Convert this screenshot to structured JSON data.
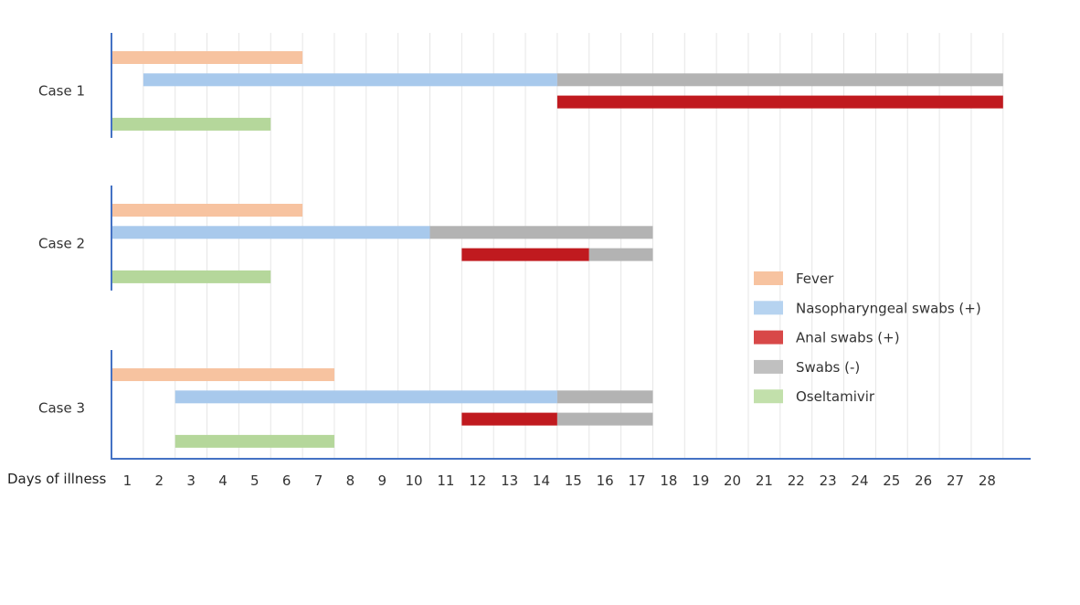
{
  "chart_data": {
    "type": "bar",
    "subtype": "horizontal-timeline",
    "xlabel": "Days of illness",
    "x_ticks": [
      1,
      2,
      3,
      4,
      5,
      6,
      7,
      8,
      9,
      10,
      11,
      12,
      13,
      14,
      15,
      16,
      17,
      18,
      19,
      20,
      21,
      22,
      23,
      24,
      25,
      26,
      27,
      28
    ],
    "xlim": [
      0.5,
      28.5
    ],
    "grid": "vertical",
    "legend_position": "right",
    "colors": {
      "fever": "#f7c3a0",
      "naso": "#a8c9ec",
      "anal": "#c01a1f",
      "negative": "#b3b3b3",
      "oseltamivir": "#b5d79b"
    },
    "legend": [
      {
        "key": "fever",
        "label": "Fever"
      },
      {
        "key": "naso",
        "label": "Nasopharyngeal swabs (+)"
      },
      {
        "key": "anal",
        "label": "Anal swabs (+)"
      },
      {
        "key": "negative",
        "label": "Swabs (-)"
      },
      {
        "key": "oseltamivir",
        "label": "Oseltamivir"
      }
    ],
    "cases": [
      {
        "label": "Case 1",
        "rows": [
          [
            {
              "series": "fever",
              "start": 0.5,
              "end": 6.5
            }
          ],
          [
            {
              "series": "naso",
              "start": 1.5,
              "end": 14.5
            },
            {
              "series": "negative",
              "start": 14.5,
              "end": 28.5
            }
          ],
          [
            {
              "series": "anal",
              "start": 14.5,
              "end": 28.5
            }
          ],
          [
            {
              "series": "oseltamivir",
              "start": 0.5,
              "end": 5.5
            }
          ]
        ]
      },
      {
        "label": "Case 2",
        "rows": [
          [
            {
              "series": "fever",
              "start": 0.5,
              "end": 6.5
            }
          ],
          [
            {
              "series": "naso",
              "start": 0.5,
              "end": 10.5
            },
            {
              "series": "negative",
              "start": 10.5,
              "end": 17.5
            }
          ],
          [
            {
              "series": "anal",
              "start": 11.5,
              "end": 15.5
            },
            {
              "series": "negative",
              "start": 15.5,
              "end": 17.5
            }
          ],
          [
            {
              "series": "oseltamivir",
              "start": 0.5,
              "end": 5.5
            }
          ]
        ]
      },
      {
        "label": "Case 3",
        "rows": [
          [
            {
              "series": "fever",
              "start": 0.5,
              "end": 7.5
            }
          ],
          [
            {
              "series": "naso",
              "start": 2.5,
              "end": 14.5
            },
            {
              "series": "negative",
              "start": 14.5,
              "end": 17.5
            }
          ],
          [
            {
              "series": "anal",
              "start": 11.5,
              "end": 14.5
            },
            {
              "series": "negative",
              "start": 14.5,
              "end": 17.5
            }
          ],
          [
            {
              "series": "oseltamivir",
              "start": 2.5,
              "end": 7.5
            }
          ]
        ]
      }
    ]
  }
}
